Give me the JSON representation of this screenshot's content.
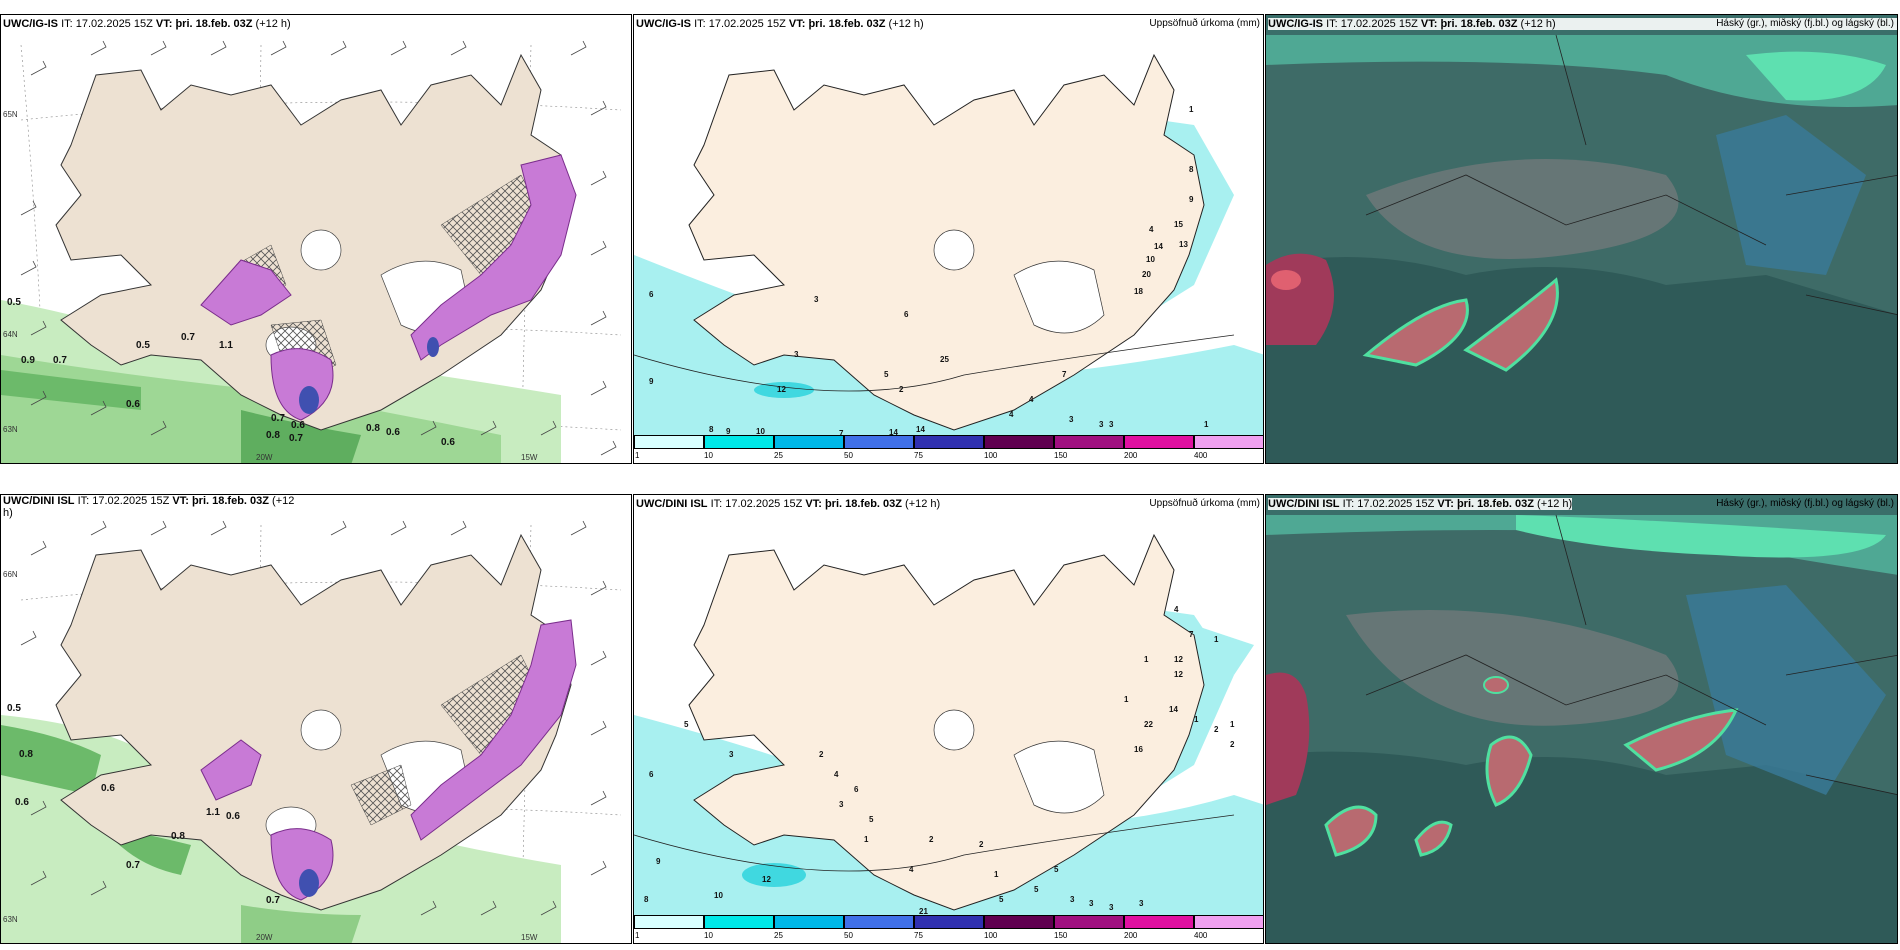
{
  "panels": {
    "ig_wind": {
      "model": "UWC/IG-IS",
      "it_label": "IT:",
      "it_value": "17.02.2025 15Z",
      "vt_label": "VT:",
      "vt_value": "þri. 18.feb. 03Z",
      "lead": "(+12 h)",
      "values": [
        "0.5",
        "0.9",
        "0.7",
        "0.5",
        "0.7",
        "1.1",
        "0.6",
        "0.6",
        "0.8",
        "0.8",
        "0.6",
        "0.6",
        "0.7",
        "0.7"
      ],
      "lat_labels": [
        "65N",
        "64N",
        "63N"
      ],
      "lon_labels": [
        "25W",
        "20W",
        "15W"
      ]
    },
    "ig_precip": {
      "model": "UWC/IG-IS",
      "it_label": "IT:",
      "it_value": "17.02.2025 15Z",
      "vt_label": "VT:",
      "vt_value": "þri. 18.feb. 03Z",
      "lead": "(+12 h)",
      "field": "Uppsöfnuð úrkoma (mm)",
      "values": [
        "6",
        "9",
        "3",
        "6",
        "3",
        "5",
        "12",
        "2",
        "25",
        "1",
        "8",
        "15",
        "9",
        "4",
        "14",
        "10",
        "13",
        "20",
        "18",
        "4",
        "7",
        "4",
        "8",
        "9",
        "10",
        "7",
        "14",
        "14",
        "3",
        "3",
        "3",
        "1"
      ]
    },
    "ig_cloud": {
      "model": "UWC/IG-IS",
      "it_label": "IT:",
      "it_value": "17.02.2025 15Z",
      "vt_label": "VT:",
      "vt_value": "þri. 18.feb. 03Z",
      "lead": "(+12 h)",
      "field": "Háský (gr.), miðský (fj.bl.) og lágský (bl.)"
    },
    "dini_wind": {
      "model": "UWC/DINI ISL",
      "it_label": "IT:",
      "it_value": "17.02.2025 15Z",
      "vt_label": "VT:",
      "vt_value": "þri. 18.feb. 03Z",
      "lead": "(+12",
      "lead2": "h)",
      "values": [
        "0.5",
        "0.8",
        "0.6",
        "0.6",
        "0.6",
        "1.1",
        "0.8",
        "0.7",
        "0.7"
      ],
      "lat_labels": [
        "66N",
        "65N",
        "64N",
        "63N"
      ],
      "lon_labels": [
        "25W",
        "20W",
        "15W"
      ]
    },
    "dini_precip": {
      "model": "UWC/DINI ISL",
      "it_label": "IT:",
      "it_value": "17.02.2025 15Z",
      "vt_label": "VT:",
      "vt_value": "þri. 18.feb. 03Z",
      "lead": "(+12 h)",
      "field": "Uppsöfnuð úrkoma (mm)",
      "values": [
        "5",
        "6",
        "3",
        "9",
        "8",
        "10",
        "12",
        "2",
        "4",
        "6",
        "3",
        "5",
        "1",
        "4",
        "2",
        "1",
        "2",
        "5",
        "5",
        "5",
        "21",
        "3",
        "3",
        "3",
        "3",
        "4",
        "7",
        "12",
        "12",
        "14",
        "1",
        "1",
        "1",
        "2",
        "1",
        "22",
        "16",
        "1",
        "2"
      ]
    },
    "dini_cloud": {
      "model": "UWC/DINI ISL",
      "it_label": "IT:",
      "it_value": "17.02.2025 15Z",
      "vt_label": "VT:",
      "vt_value": "þri. 18.feb. 03Z",
      "lead": "(+12 h)",
      "field": "Háský (gr.), miðský (fj.bl.) og lágský (bl.)"
    }
  },
  "precip_legend": {
    "ticks": [
      "1",
      "10",
      "25",
      "50",
      "75",
      "100",
      "150",
      "200",
      "400"
    ],
    "colors": [
      "#d8ffff",
      "#00e8e8",
      "#00b8e8",
      "#4070e8",
      "#3030b0",
      "#600050",
      "#a01080",
      "#e010a0",
      "#f0a0f0"
    ]
  }
}
